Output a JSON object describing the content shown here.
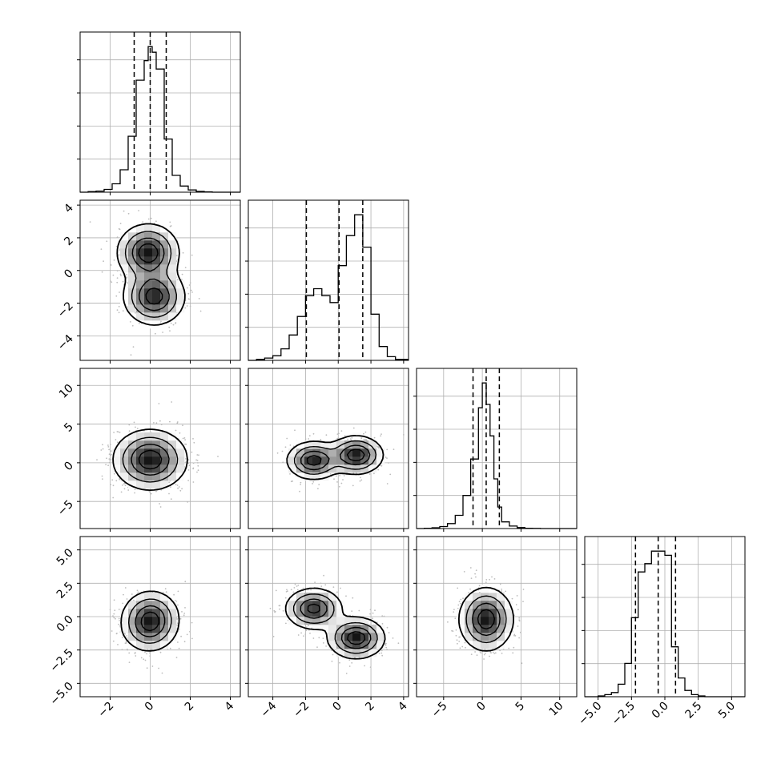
{
  "chart_data": {
    "type": "corner",
    "grid": true,
    "quantile_lines": "dashed",
    "contour_levels": 4,
    "colors": {
      "hist": "#000000",
      "grid": "#b0b0b0",
      "scatter": "#bdbdbd",
      "density": "#000000"
    },
    "params": [
      {
        "range": [
          -3.5,
          4.5
        ],
        "ticks": [
          -2,
          0,
          2,
          4
        ],
        "tick_labels": [
          "−2",
          "0",
          "2",
          "4"
        ],
        "quantiles": [
          -0.8,
          0.0,
          0.8
        ]
      },
      {
        "range": [
          -5.5,
          4.3
        ],
        "ticks": [
          -4,
          -2,
          0,
          2,
          4
        ],
        "tick_labels": [
          "−4",
          "−2",
          "0",
          "2",
          "4"
        ],
        "quantiles": [
          -1.95,
          0.05,
          1.5
        ]
      },
      {
        "range": [
          -8.5,
          12.2
        ],
        "ticks": [
          -5,
          0,
          5,
          10
        ],
        "tick_labels": [
          "−5",
          "0",
          "5",
          "10"
        ],
        "quantiles": [
          -1.2,
          0.5,
          2.2
        ]
      },
      {
        "range": [
          -6.0,
          6.0
        ],
        "ticks": [
          -5.0,
          -2.5,
          0.0,
          2.5,
          5.0
        ],
        "tick_labels": [
          "−5.0",
          "−2.5",
          "0.0",
          "2.5",
          "5.0"
        ],
        "quantiles": [
          -2.2,
          -0.5,
          0.8
        ]
      }
    ],
    "histograms": [
      {
        "param": 0,
        "bin_edges": [
          -3.5,
          -3.1,
          -2.7,
          -2.3,
          -1.9,
          -1.5,
          -1.1,
          -0.7,
          -0.3,
          -0.1,
          0.1,
          0.3,
          0.7,
          1.1,
          1.5,
          1.9,
          2.3,
          2.7,
          3.1,
          3.5,
          4.5
        ],
        "counts": [
          0,
          2,
          4,
          10,
          30,
          80,
          200,
          400,
          470,
          520,
          500,
          440,
          190,
          60,
          22,
          8,
          3,
          1,
          0,
          0
        ]
      },
      {
        "param": 1,
        "bin_edges": [
          -5.5,
          -5.0,
          -4.5,
          -4.0,
          -3.5,
          -3.0,
          -2.5,
          -2.0,
          -1.5,
          -1.0,
          -0.5,
          0.0,
          0.5,
          1.0,
          1.5,
          2.0,
          2.5,
          3.0,
          3.5,
          4.3
        ],
        "counts": [
          0,
          2,
          5,
          10,
          25,
          55,
          95,
          140,
          155,
          140,
          125,
          205,
          270,
          315,
          245,
          100,
          30,
          8,
          2
        ]
      },
      {
        "param": 2,
        "bin_edges": [
          -8.5,
          -7.5,
          -6.5,
          -5.5,
          -4.5,
          -3.5,
          -2.5,
          -1.5,
          -0.5,
          0.0,
          0.5,
          1.0,
          1.5,
          2.0,
          2.5,
          3.5,
          4.5,
          5.5,
          6.5,
          7.5,
          12.2
        ],
        "counts": [
          0,
          2,
          5,
          12,
          30,
          80,
          200,
          420,
          730,
          880,
          750,
          560,
          300,
          130,
          40,
          15,
          6,
          2,
          1,
          0
        ]
      },
      {
        "param": 3,
        "bin_edges": [
          -6.0,
          -5.5,
          -5.0,
          -4.5,
          -4.0,
          -3.5,
          -3.0,
          -2.5,
          -2.0,
          -1.5,
          -1.0,
          -0.5,
          0.0,
          0.5,
          1.0,
          1.5,
          2.0,
          2.5,
          3.0,
          3.5,
          4.0,
          6.0
        ],
        "counts": [
          0,
          0,
          2,
          5,
          10,
          30,
          80,
          190,
          300,
          320,
          350,
          350,
          340,
          120,
          45,
          15,
          5,
          2,
          0,
          0,
          0
        ]
      }
    ],
    "pairs": [
      {
        "x_param": 0,
        "y_param": 1,
        "spread": [
          0.75,
          0.85
        ],
        "modes": [
          {
            "x": -0.1,
            "y": 1.1,
            "w": 1.0
          },
          {
            "x": 0.2,
            "y": -1.6,
            "w": 0.95
          }
        ]
      },
      {
        "x_param": 0,
        "y_param": 2,
        "spread": [
          0.9,
          1.9
        ],
        "modes": [
          {
            "x": 0.0,
            "y": 0.4,
            "w": 1.0
          }
        ]
      },
      {
        "x_param": 1,
        "y_param": 2,
        "spread": [
          0.8,
          1.2
        ],
        "modes": [
          {
            "x": -1.5,
            "y": 0.3,
            "w": 1.0
          },
          {
            "x": 1.1,
            "y": 1.0,
            "w": 1.05
          }
        ]
      },
      {
        "x_param": 0,
        "y_param": 3,
        "spread": [
          0.7,
          0.95
        ],
        "modes": [
          {
            "x": -0.05,
            "y": -0.8,
            "w": 1.0
          },
          {
            "x": 0.05,
            "y": 0.2,
            "w": 0.85
          }
        ]
      },
      {
        "x_param": 1,
        "y_param": 3,
        "spread": [
          0.85,
          0.75
        ],
        "modes": [
          {
            "x": -1.5,
            "y": 0.6,
            "w": 1.0
          },
          {
            "x": 1.1,
            "y": -1.6,
            "w": 1.1
          }
        ]
      },
      {
        "x_param": 2,
        "y_param": 3,
        "spread": [
          1.7,
          1.15
        ],
        "modes": [
          {
            "x": 0.5,
            "y": -0.2,
            "w": 1.0
          }
        ]
      }
    ]
  }
}
